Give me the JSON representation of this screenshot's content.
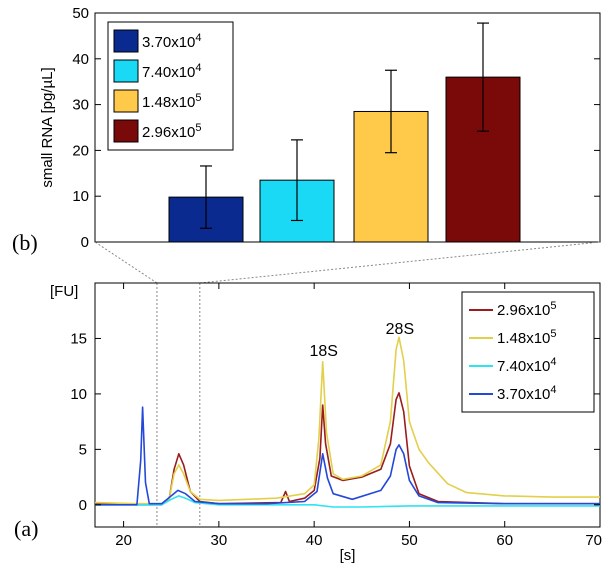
{
  "chart_data": [
    {
      "panel": "(b)",
      "type": "bar",
      "title": "",
      "xlabel": "",
      "ylabel": "small RNA [pg/µL]",
      "ylim": [
        0,
        50
      ],
      "yticks": [
        0,
        10,
        20,
        30,
        40,
        50
      ],
      "grid": false,
      "legend_position": "top-left",
      "categories": [
        "3.70x10^4",
        "7.40x10^4",
        "1.48x10^5",
        "2.96x10^5"
      ],
      "legend": [
        {
          "base": "3.70x10",
          "exp": "4",
          "color": "#0b2a8f"
        },
        {
          "base": "7.40x10",
          "exp": "4",
          "color": "#19d9f5"
        },
        {
          "base": "1.48x10",
          "exp": "5",
          "color": "#ffc94a"
        },
        {
          "base": "2.96x10",
          "exp": "5",
          "color": "#7a0a0a"
        }
      ],
      "values": [
        9.8,
        13.5,
        28.5,
        36.0
      ],
      "errors": [
        6.8,
        8.8,
        9.0,
        11.8
      ]
    },
    {
      "panel": "(a)",
      "type": "line",
      "title": "",
      "xlabel": "[s]",
      "ylabel": "[FU]",
      "xlim": [
        17,
        70
      ],
      "ylim": [
        -2,
        20
      ],
      "xticks": [
        20,
        30,
        40,
        50,
        60,
        70
      ],
      "yticks": [
        0,
        5,
        10,
        15
      ],
      "grid": false,
      "legend_position": "top-right",
      "annotations": [
        {
          "text": "18S",
          "x": 41,
          "y": 13.4
        },
        {
          "text": "28S",
          "x": 49,
          "y": 15.4
        }
      ],
      "zoom_region": [
        23.5,
        28
      ],
      "series": [
        {
          "name_base": "2.96x10",
          "name_exp": "5",
          "color": "#9b1c1c",
          "points": [
            [
              17,
              0.1
            ],
            [
              21.5,
              0
            ],
            [
              22.5,
              0
            ],
            [
              24,
              0
            ],
            [
              24.8,
              0.6
            ],
            [
              25.3,
              3.2
            ],
            [
              25.8,
              4.6
            ],
            [
              26.3,
              3.6
            ],
            [
              27,
              1.2
            ],
            [
              28,
              0.3
            ],
            [
              30,
              0.1
            ],
            [
              36.5,
              0.2
            ],
            [
              37,
              1.2
            ],
            [
              37.4,
              0.3
            ],
            [
              39,
              0.6
            ],
            [
              40,
              1.3
            ],
            [
              40.6,
              4.2
            ],
            [
              40.9,
              9.0
            ],
            [
              41.2,
              5.5
            ],
            [
              41.8,
              2.6
            ],
            [
              43,
              2.2
            ],
            [
              45,
              2.5
            ],
            [
              47,
              3.2
            ],
            [
              48,
              5.5
            ],
            [
              48.6,
              9.5
            ],
            [
              48.9,
              10.1
            ],
            [
              49.4,
              8.4
            ],
            [
              50,
              3.5
            ],
            [
              51,
              1.0
            ],
            [
              53,
              0.3
            ],
            [
              60,
              0.1
            ],
            [
              70,
              0.1
            ]
          ]
        },
        {
          "name_base": "1.48x10",
          "name_exp": "5",
          "color": "#e2d04a",
          "points": [
            [
              17,
              0.2
            ],
            [
              21.5,
              0.1
            ],
            [
              22.5,
              0.1
            ],
            [
              24,
              0.1
            ],
            [
              24.8,
              0.6
            ],
            [
              25.3,
              2.8
            ],
            [
              25.8,
              3.6
            ],
            [
              26.3,
              2.8
            ],
            [
              27,
              1.2
            ],
            [
              28,
              0.5
            ],
            [
              30,
              0.4
            ],
            [
              33,
              0.5
            ],
            [
              36,
              0.6
            ],
            [
              39,
              1.0
            ],
            [
              40,
              1.8
            ],
            [
              40.5,
              6.0
            ],
            [
              40.9,
              12.9
            ],
            [
              41.3,
              6.5
            ],
            [
              42,
              2.8
            ],
            [
              43,
              2.3
            ],
            [
              45,
              2.6
            ],
            [
              47,
              3.6
            ],
            [
              48,
              7.5
            ],
            [
              48.6,
              14.0
            ],
            [
              48.9,
              15.1
            ],
            [
              49.4,
              13.0
            ],
            [
              50,
              7.5
            ],
            [
              51,
              5.0
            ],
            [
              52,
              3.8
            ],
            [
              54,
              1.9
            ],
            [
              56,
              1.1
            ],
            [
              60,
              0.8
            ],
            [
              65,
              0.7
            ],
            [
              70,
              0.7
            ]
          ]
        },
        {
          "name_base": "7.40x10",
          "name_exp": "4",
          "color": "#2fe3f0",
          "points": [
            [
              17,
              0
            ],
            [
              21.5,
              0
            ],
            [
              22.5,
              0
            ],
            [
              24,
              0
            ],
            [
              25,
              0.5
            ],
            [
              25.8,
              0.8
            ],
            [
              26.5,
              0.6
            ],
            [
              27.5,
              0.2
            ],
            [
              30,
              0
            ],
            [
              35,
              0
            ],
            [
              40,
              0
            ],
            [
              42,
              -0.2
            ],
            [
              45,
              -0.2
            ],
            [
              50,
              -0.1
            ],
            [
              55,
              -0.1
            ],
            [
              60,
              -0.1
            ],
            [
              70,
              -0.1
            ]
          ]
        },
        {
          "name_base": "3.70x10",
          "name_exp": "4",
          "color": "#2448d8",
          "points": [
            [
              17,
              0
            ],
            [
              21.4,
              0
            ],
            [
              21.8,
              4.0
            ],
            [
              22,
              8.8
            ],
            [
              22.3,
              2.0
            ],
            [
              22.7,
              0.1
            ],
            [
              24,
              0.1
            ],
            [
              25,
              0.8
            ],
            [
              25.7,
              1.3
            ],
            [
              26.5,
              1.0
            ],
            [
              27.5,
              0.3
            ],
            [
              30,
              0.1
            ],
            [
              35,
              0.1
            ],
            [
              39,
              0.3
            ],
            [
              40.3,
              1.2
            ],
            [
              40.9,
              4.6
            ],
            [
              41.4,
              2.4
            ],
            [
              42,
              1.0
            ],
            [
              44,
              0.5
            ],
            [
              47,
              1.3
            ],
            [
              48,
              2.6
            ],
            [
              48.6,
              5.0
            ],
            [
              48.9,
              5.4
            ],
            [
              49.4,
              4.6
            ],
            [
              50,
              2.2
            ],
            [
              51,
              0.8
            ],
            [
              53,
              0.2
            ],
            [
              60,
              0.1
            ],
            [
              70,
              0.1
            ]
          ]
        }
      ]
    }
  ]
}
